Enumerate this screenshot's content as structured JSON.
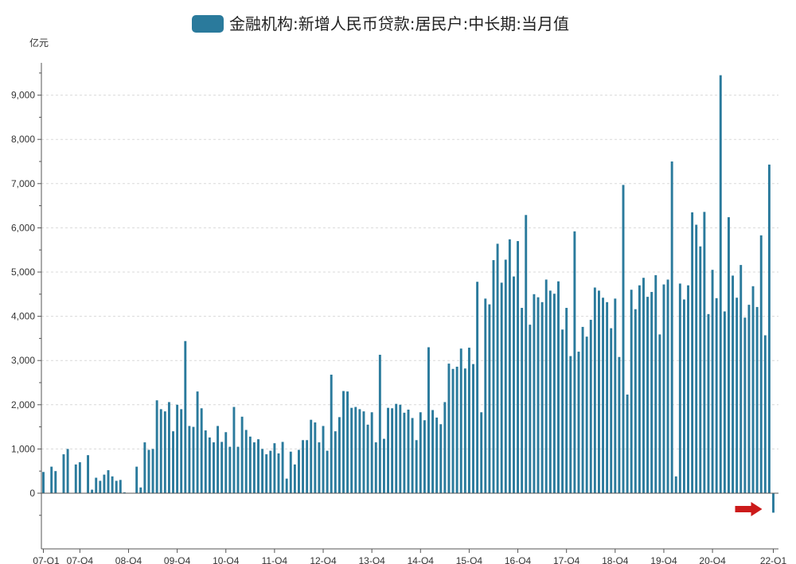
{
  "chart_data": {
    "type": "bar",
    "title": "",
    "legend": {
      "label": "金融机构:新增人民币贷款:居民户:中长期:当月值",
      "placement": "top-center"
    },
    "ylabel": "亿元",
    "xlabel": "",
    "ylim": [
      -900,
      10000
    ],
    "y_ticks": [
      0,
      1000,
      2000,
      3000,
      4000,
      5000,
      6000,
      7000,
      8000,
      9000
    ],
    "y_tick_labels": [
      "0",
      "1,000",
      "2,000",
      "3,000",
      "4,000",
      "5,000",
      "6,000",
      "7,000",
      "8,000",
      "9,000"
    ],
    "x_tick_labels": [
      "07-Q1",
      "07-Q4",
      "08-Q4",
      "09-Q4",
      "10-Q4",
      "11-Q4",
      "12-Q4",
      "13-Q4",
      "14-Q4",
      "15-Q4",
      "16-Q4",
      "17-Q4",
      "18-Q4",
      "19-Q4",
      "20-Q4",
      "22-Q1"
    ],
    "x_tick_month_index": [
      0,
      9,
      21,
      33,
      45,
      57,
      69,
      81,
      93,
      105,
      117,
      129,
      141,
      153,
      165,
      180
    ],
    "grid": "horizontal-dashed",
    "bar_color": "#2a7a9c",
    "annotation_color": "#cc1a1a",
    "annotation": {
      "type": "arrow",
      "points_to_month_index": 180
    },
    "series": [
      {
        "values": [
          480,
          null,
          600,
          500,
          null,
          880,
          1000,
          null,
          650,
          700,
          null,
          860,
          80,
          350,
          280,
          420,
          520,
          380,
          280,
          300,
          20,
          null,
          null,
          600,
          130,
          1150,
          980,
          1000,
          2100,
          1900,
          1850,
          2060,
          1400,
          2000,
          1900,
          3440,
          1520,
          1500,
          2300,
          1920,
          1420,
          1260,
          1150,
          1520,
          1160,
          1380,
          1050,
          1950,
          1050,
          1730,
          1430,
          1280,
          1150,
          1220,
          1000,
          880,
          960,
          1130,
          900,
          1160,
          330,
          940,
          650,
          980,
          1200,
          1200,
          1660,
          1600,
          1150,
          1520,
          960,
          2680,
          1400,
          1720,
          2310,
          2300,
          1930,
          1950,
          1900,
          1850,
          1550,
          1830,
          1150,
          3130,
          1230,
          1930,
          1920,
          2020,
          2000,
          1820,
          1890,
          1700,
          1200,
          1830,
          1650,
          3300,
          1880,
          1710,
          1560,
          2060,
          2930,
          2810,
          2860,
          3270,
          2820,
          3290,
          2920,
          4780,
          1830,
          4400,
          4270,
          5270,
          5640,
          4760,
          5280,
          5740,
          4900,
          5700,
          4190,
          6290,
          3810,
          4500,
          4430,
          4320,
          4830,
          4580,
          4510,
          4790,
          3700,
          4190,
          3100,
          5920,
          3200,
          3760,
          3540,
          3920,
          4650,
          4580,
          4420,
          4320,
          3730,
          4400,
          3080,
          6970,
          2230,
          4600,
          4160,
          4700,
          4870,
          4440,
          4550,
          4930,
          3590,
          4720,
          4830,
          7500,
          380,
          4740,
          4380,
          4700,
          6350,
          6070,
          5580,
          6360,
          4050,
          5050,
          4410,
          9450,
          4110,
          6240,
          4920,
          4420,
          5160,
          3970,
          4260,
          4680,
          4210,
          5830,
          3570,
          7430,
          -440
        ]
      }
    ]
  }
}
